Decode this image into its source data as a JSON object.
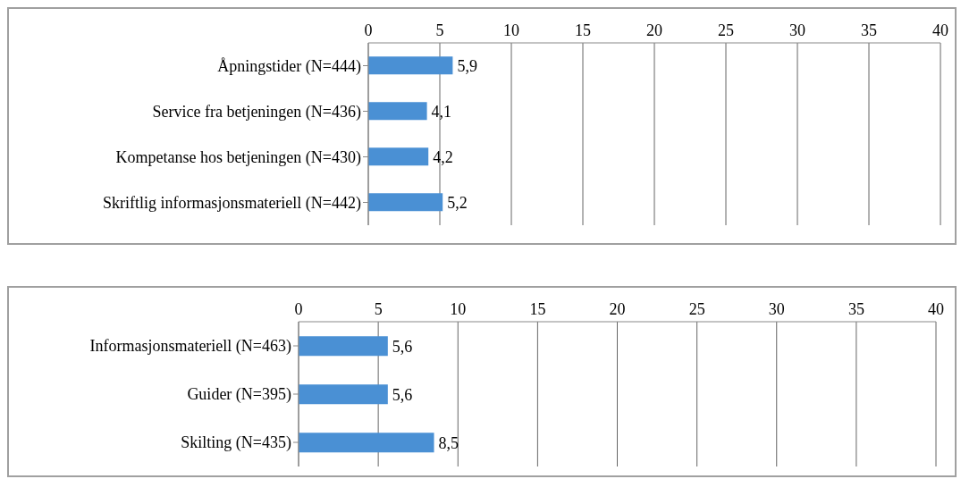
{
  "chart_data": [
    {
      "type": "bar",
      "orientation": "horizontal",
      "categories": [
        "Åpningstider (N=444)",
        "Service fra betjeningen (N=436)",
        "Kompetanse hos betjeningen (N=430)",
        "Skriftlig informasjonsmateriell (N=442)"
      ],
      "values": [
        5.9,
        4.1,
        4.2,
        5.2
      ],
      "value_labels": [
        "5,9",
        "4,1",
        "4,2",
        "5,2"
      ],
      "color": "#4a90d4",
      "xlim": [
        0,
        40
      ],
      "xticks": [
        0,
        5,
        10,
        15,
        20,
        25,
        30,
        35,
        40
      ],
      "grid": "x"
    },
    {
      "type": "bar",
      "orientation": "horizontal",
      "categories": [
        "Informasjonsmateriell (N=463)",
        "Guider (N=395)",
        "Skilting (N=435)"
      ],
      "values": [
        5.6,
        5.6,
        8.5
      ],
      "value_labels": [
        "5,6",
        "5,6",
        "8,5"
      ],
      "color": "#4a90d4",
      "xlim": [
        0,
        40
      ],
      "xticks": [
        0,
        5,
        10,
        15,
        20,
        25,
        30,
        35,
        40
      ],
      "grid": "x"
    }
  ]
}
